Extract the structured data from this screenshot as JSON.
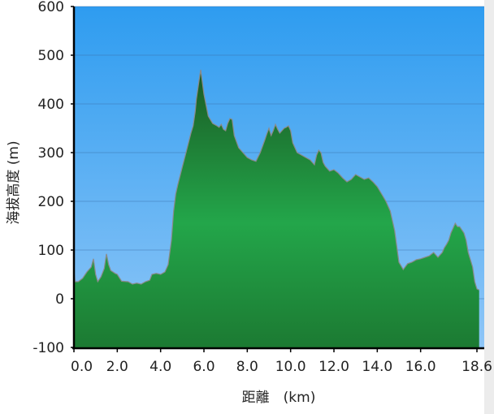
{
  "chart_data": {
    "type": "area",
    "title": "",
    "xlabel": "距離　(km)",
    "ylabel": "海拔高度 (m)",
    "xlim": [
      0,
      18.9
    ],
    "ylim": [
      -100,
      600
    ],
    "x_ticks": [
      0,
      2,
      4,
      6,
      8,
      10,
      12,
      14,
      16,
      18.6
    ],
    "x_tick_labels": [
      "0.0",
      "2.0",
      "4.0",
      "6.0",
      "8.0",
      "10.0",
      "12.0",
      "14.0",
      "16.0",
      "18.6"
    ],
    "y_ticks": [
      -100,
      0,
      100,
      200,
      300,
      400,
      500,
      600
    ],
    "y_tick_labels": [
      "-100",
      "0",
      "100",
      "200",
      "300",
      "400",
      "500",
      "600"
    ],
    "grid": true,
    "legend": "none",
    "colors": {
      "sky_top": "#2e9cf0",
      "sky_bottom": "#8ec6f7",
      "fill_top": "#1a5a24",
      "fill_mid": "#23a64a",
      "fill_bottom": "#1c7a32",
      "outline": "#8a8a8a"
    },
    "series": [
      {
        "x": [
          0,
          0.05,
          0.2,
          0.4,
          0.6,
          0.8,
          0.9,
          1.0,
          1.1,
          1.25,
          1.4,
          1.5,
          1.6,
          1.7,
          1.8,
          1.9,
          2.0,
          2.2,
          2.5,
          2.7,
          2.9,
          3.1,
          3.3,
          3.5,
          3.6,
          3.8,
          4.0,
          4.2,
          4.35,
          4.5,
          4.6,
          4.7,
          4.8,
          5.0,
          5.2,
          5.4,
          5.5,
          5.6,
          5.65,
          5.75,
          5.85,
          6.0,
          6.2,
          6.4,
          6.6,
          6.7,
          6.8,
          6.9,
          7.0,
          7.1,
          7.2,
          7.3,
          7.4,
          7.6,
          7.8,
          8.0,
          8.2,
          8.4,
          8.6,
          8.8,
          8.9,
          9.0,
          9.1,
          9.2,
          9.3,
          9.4,
          9.5,
          9.6,
          9.7,
          9.8,
          9.9,
          10.0,
          10.1,
          10.3,
          10.5,
          10.7,
          10.9,
          11.1,
          11.2,
          11.3,
          11.4,
          11.5,
          11.6,
          11.8,
          12.0,
          12.2,
          12.4,
          12.6,
          12.8,
          13.0,
          13.2,
          13.4,
          13.6,
          13.8,
          14.0,
          14.2,
          14.4,
          14.6,
          14.8,
          15.0,
          15.2,
          15.4,
          15.6,
          15.8,
          16.0,
          16.2,
          16.4,
          16.6,
          16.8,
          17.0,
          17.1,
          17.2,
          17.3,
          17.4,
          17.5,
          17.6,
          17.7,
          17.8,
          18.0,
          18.1,
          18.2,
          18.3,
          18.4,
          18.5,
          18.6,
          18.7
        ],
        "y": [
          60,
          35,
          35,
          42,
          55,
          65,
          82,
          50,
          35,
          45,
          62,
          92,
          70,
          58,
          55,
          52,
          50,
          36,
          35,
          30,
          32,
          30,
          35,
          38,
          50,
          52,
          50,
          55,
          70,
          120,
          180,
          215,
          235,
          270,
          305,
          340,
          355,
          385,
          410,
          440,
          470,
          420,
          375,
          360,
          355,
          352,
          358,
          348,
          345,
          360,
          370,
          368,
          335,
          310,
          300,
          290,
          285,
          282,
          300,
          325,
          338,
          350,
          335,
          345,
          358,
          348,
          340,
          345,
          350,
          352,
          355,
          345,
          320,
          300,
          295,
          290,
          285,
          275,
          295,
          305,
          300,
          280,
          272,
          262,
          265,
          258,
          248,
          240,
          245,
          255,
          250,
          245,
          248,
          240,
          230,
          215,
          200,
          180,
          140,
          75,
          60,
          72,
          75,
          80,
          82,
          85,
          88,
          95,
          85,
          95,
          105,
          112,
          120,
          135,
          145,
          155,
          148,
          148,
          135,
          120,
          95,
          80,
          65,
          35,
          20,
          18
        ]
      }
    ]
  }
}
